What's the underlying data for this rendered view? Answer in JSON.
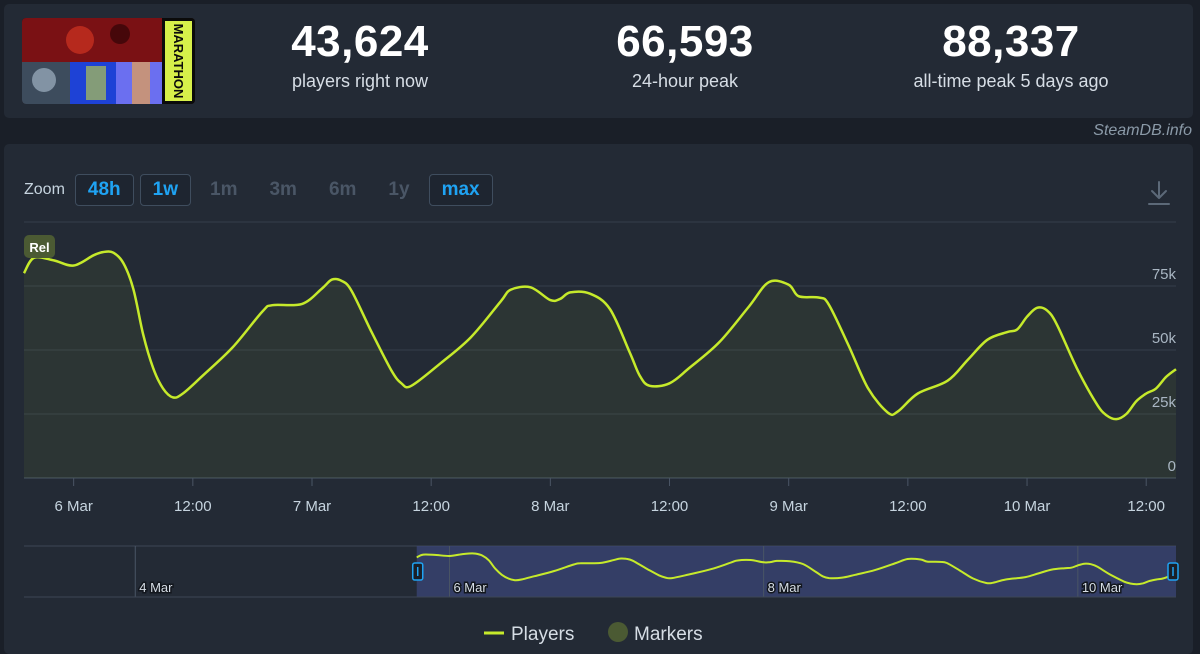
{
  "stats": [
    {
      "value": "43,624",
      "label": "players right now"
    },
    {
      "value": "66,593",
      "label": "24-hour peak"
    },
    {
      "value": "88,337",
      "label": "all-time peak 5 days ago"
    }
  ],
  "game_art": {
    "logo_text": "MARATHON"
  },
  "source_credit": "SteamDB.info",
  "zoom": {
    "label": "Zoom",
    "options": [
      {
        "label": "48h",
        "active": true
      },
      {
        "label": "1w",
        "active": true
      },
      {
        "label": "1m",
        "active": false
      },
      {
        "label": "3m",
        "active": false
      },
      {
        "label": "6m",
        "active": false
      },
      {
        "label": "1y",
        "active": false
      },
      {
        "label": "max",
        "active": true
      }
    ]
  },
  "icons": {
    "download": "download-icon"
  },
  "colors": {
    "series": "#c6ea2b",
    "active_button": "#1fa3f3",
    "marker": "#4b5a33",
    "navigator_window": "#3b4577"
  },
  "chart_data": {
    "type": "line",
    "title": "",
    "xlabel": "",
    "ylabel": "",
    "ylim": [
      0,
      100000
    ],
    "y_ticks": [
      0,
      25000,
      50000,
      75000
    ],
    "y_tick_labels": [
      "0",
      "25k",
      "50k",
      "75k"
    ],
    "x_ticks": [
      {
        "t": "2026-03-06 00:00",
        "label": "6 Mar"
      },
      {
        "t": "2026-03-06 12:00",
        "label": "12:00"
      },
      {
        "t": "2026-03-07 00:00",
        "label": "7 Mar"
      },
      {
        "t": "2026-03-07 12:00",
        "label": "12:00"
      },
      {
        "t": "2026-03-08 00:00",
        "label": "8 Mar"
      },
      {
        "t": "2026-03-08 12:00",
        "label": "12:00"
      },
      {
        "t": "2026-03-09 00:00",
        "label": "9 Mar"
      },
      {
        "t": "2026-03-09 12:00",
        "label": "12:00"
      },
      {
        "t": "2026-03-10 00:00",
        "label": "10 Mar"
      },
      {
        "t": "2026-03-10 12:00",
        "label": "12:00"
      }
    ],
    "xlim": [
      "2026-03-05 19:00",
      "2026-03-10 15:00"
    ],
    "markers": [
      {
        "t": "2026-03-05 19:00",
        "label": "Rel"
      }
    ],
    "series": [
      {
        "name": "Players",
        "points": [
          [
            "2026-03-05 19:00",
            80000
          ],
          [
            "2026-03-05 20:00",
            86000
          ],
          [
            "2026-03-05 22:00",
            85000
          ],
          [
            "2026-03-06 00:00",
            83000
          ],
          [
            "2026-03-06 02:00",
            87000
          ],
          [
            "2026-03-06 03:00",
            88300
          ],
          [
            "2026-03-06 04:00",
            88000
          ],
          [
            "2026-03-06 05:00",
            84000
          ],
          [
            "2026-03-06 06:00",
            74000
          ],
          [
            "2026-03-06 07:00",
            56000
          ],
          [
            "2026-03-06 08:00",
            43000
          ],
          [
            "2026-03-06 09:00",
            35000
          ],
          [
            "2026-03-06 10:00",
            31500
          ],
          [
            "2026-03-06 11:00",
            33000
          ],
          [
            "2026-03-06 13:00",
            40000
          ],
          [
            "2026-03-06 16:00",
            51000
          ],
          [
            "2026-03-06 19:00",
            65000
          ],
          [
            "2026-03-06 20:00",
            67500
          ],
          [
            "2026-03-06 23:00",
            68000
          ],
          [
            "2026-03-07 01:00",
            74000
          ],
          [
            "2026-03-07 02:00",
            77500
          ],
          [
            "2026-03-07 03:00",
            77000
          ],
          [
            "2026-03-07 04:00",
            73000
          ],
          [
            "2026-03-07 06:00",
            57000
          ],
          [
            "2026-03-07 08:00",
            42000
          ],
          [
            "2026-03-07 09:00",
            37000
          ],
          [
            "2026-03-07 10:00",
            36000
          ],
          [
            "2026-03-07 13:00",
            45000
          ],
          [
            "2026-03-07 16:00",
            55000
          ],
          [
            "2026-03-07 19:00",
            69000
          ],
          [
            "2026-03-07 20:00",
            73500
          ],
          [
            "2026-03-07 22:00",
            74500
          ],
          [
            "2026-03-08 00:00",
            69500
          ],
          [
            "2026-03-08 01:00",
            70000
          ],
          [
            "2026-03-08 02:00",
            72500
          ],
          [
            "2026-03-08 04:00",
            72000
          ],
          [
            "2026-03-08 06:00",
            66000
          ],
          [
            "2026-03-08 08:00",
            49000
          ],
          [
            "2026-03-08 09:00",
            40000
          ],
          [
            "2026-03-08 10:00",
            36000
          ],
          [
            "2026-03-08 12:00",
            37000
          ],
          [
            "2026-03-08 14:00",
            43000
          ],
          [
            "2026-03-08 17:00",
            53000
          ],
          [
            "2026-03-08 20:00",
            67000
          ],
          [
            "2026-03-08 22:00",
            76500
          ],
          [
            "2026-03-09 00:00",
            75500
          ],
          [
            "2026-03-09 01:00",
            71000
          ],
          [
            "2026-03-09 03:00",
            70500
          ],
          [
            "2026-03-09 04:00",
            68000
          ],
          [
            "2026-03-09 06:00",
            52000
          ],
          [
            "2026-03-09 08:00",
            35000
          ],
          [
            "2026-03-09 10:00",
            25500
          ],
          [
            "2026-03-09 11:00",
            26000
          ],
          [
            "2026-03-09 13:00",
            33000
          ],
          [
            "2026-03-09 16:00",
            38000
          ],
          [
            "2026-03-09 18:00",
            46000
          ],
          [
            "2026-03-09 20:00",
            54000
          ],
          [
            "2026-03-09 22:00",
            57000
          ],
          [
            "2026-03-09 23:00",
            58000
          ],
          [
            "2026-03-10 00:00",
            63000
          ],
          [
            "2026-03-10 01:00",
            66500
          ],
          [
            "2026-03-10 02:00",
            65500
          ],
          [
            "2026-03-10 03:00",
            60000
          ],
          [
            "2026-03-10 05:00",
            43000
          ],
          [
            "2026-03-10 07:00",
            29000
          ],
          [
            "2026-03-10 08:00",
            24500
          ],
          [
            "2026-03-10 09:00",
            23000
          ],
          [
            "2026-03-10 10:00",
            25000
          ],
          [
            "2026-03-10 11:00",
            30000
          ],
          [
            "2026-03-10 12:00",
            33000
          ],
          [
            "2026-03-10 13:00",
            35000
          ],
          [
            "2026-03-10 14:00",
            39500
          ],
          [
            "2026-03-10 15:00",
            42500
          ]
        ]
      }
    ],
    "navigator": {
      "xlim": [
        "2026-03-03 07:00",
        "2026-03-10 15:00"
      ],
      "window": [
        "2026-03-05 19:00",
        "2026-03-10 15:00"
      ],
      "labels": [
        {
          "t": "2026-03-04 00:00",
          "label": "4 Mar"
        },
        {
          "t": "2026-03-06 00:00",
          "label": "6 Mar"
        },
        {
          "t": "2026-03-08 00:00",
          "label": "8 Mar"
        },
        {
          "t": "2026-03-10 00:00",
          "label": "10 Mar"
        }
      ]
    },
    "legend": {
      "placement": "bottom-center",
      "items": [
        {
          "label": "Players",
          "kind": "line"
        },
        {
          "label": "Markers",
          "kind": "dot"
        }
      ]
    }
  }
}
